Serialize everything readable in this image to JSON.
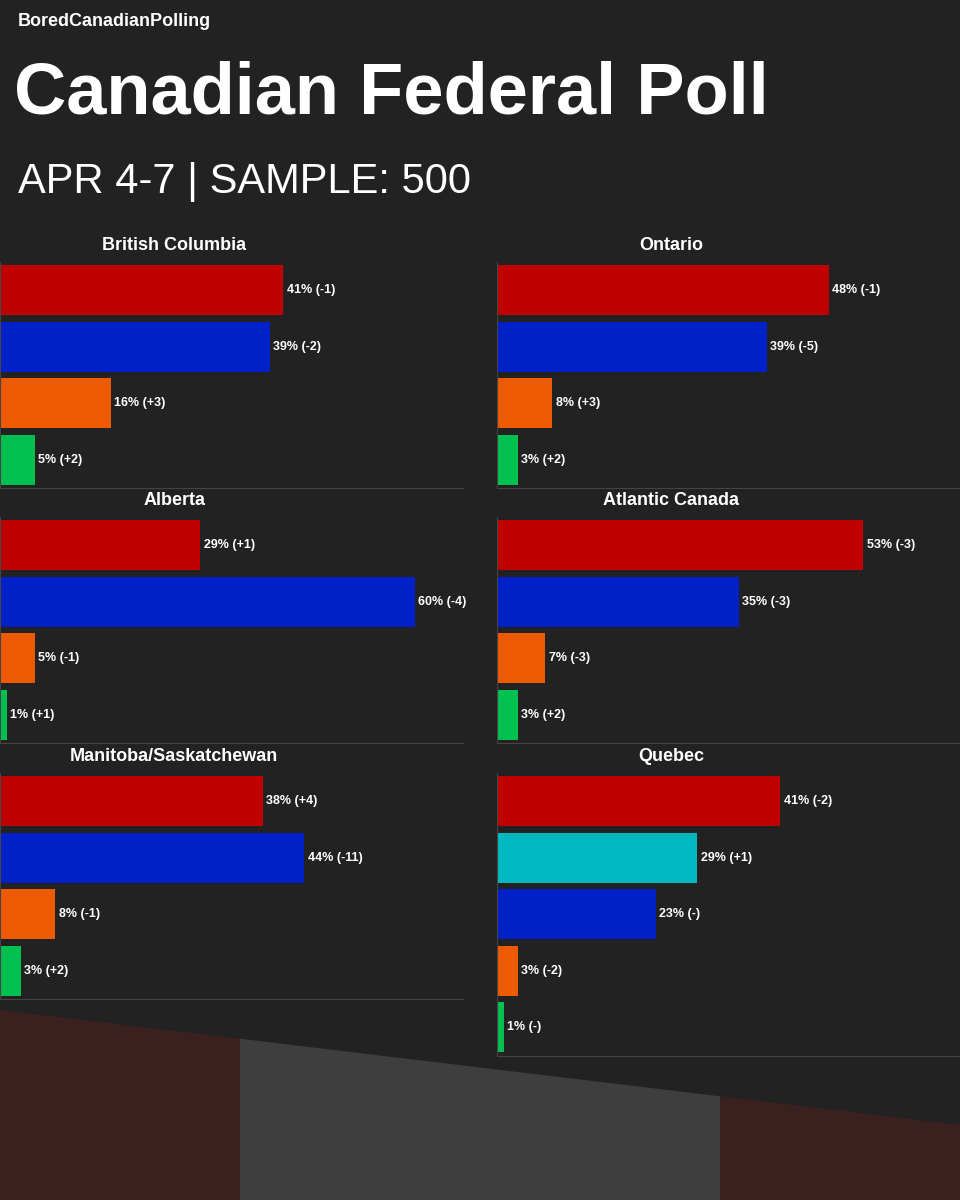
{
  "header": {
    "source": "BoredCanadianPolling",
    "title": "Canadian Federal Poll",
    "subtitle": "APR 4-7 | SAMPLE: 500"
  },
  "chart_data": [
    {
      "type": "bar",
      "orientation": "horizontal",
      "title": "British Columbia",
      "categories": [
        null,
        null,
        null,
        null
      ],
      "values": [
        41,
        39,
        16,
        5
      ],
      "value_labels": [
        "41% (-1)",
        "39% (-2)",
        "16% (+3)",
        "5% (+2)"
      ],
      "colors": [
        "#c00000",
        "#0020c8",
        "#ee5a00",
        "#00c050"
      ],
      "xlim": [
        0,
        67
      ],
      "xticks": [],
      "data_labels": true,
      "tick_labels": false
    },
    {
      "type": "bar",
      "orientation": "horizontal",
      "title": "Ontario",
      "categories": [
        null,
        null,
        null,
        null
      ],
      "values": [
        48,
        39,
        8,
        3
      ],
      "value_labels": [
        "48% (-1)",
        "39% (-5)",
        "8% (+3)",
        "3% (+2)"
      ],
      "colors": [
        "#c00000",
        "#0020c8",
        "#ee5a00",
        "#00c050"
      ],
      "xlim": [
        0,
        67
      ],
      "xticks": [],
      "data_labels": true,
      "tick_labels": false
    },
    {
      "type": "bar",
      "orientation": "horizontal",
      "title": "Alberta",
      "categories": [
        null,
        null,
        null,
        null
      ],
      "values": [
        29,
        60,
        5,
        1
      ],
      "value_labels": [
        "29% (+1)",
        "60% (-4)",
        "5% (-1)",
        "1% (+1)"
      ],
      "colors": [
        "#c00000",
        "#0020c8",
        "#ee5a00",
        "#00c050"
      ],
      "xlim": [
        0,
        67
      ],
      "xticks": [],
      "data_labels": true,
      "tick_labels": false
    },
    {
      "type": "bar",
      "orientation": "horizontal",
      "title": "Atlantic Canada",
      "categories": [
        null,
        null,
        null,
        null
      ],
      "values": [
        53,
        35,
        7,
        3
      ],
      "value_labels": [
        "53% (-3)",
        "35% (-3)",
        "7% (-3)",
        "3% (+2)"
      ],
      "colors": [
        "#c00000",
        "#0020c8",
        "#ee5a00",
        "#00c050"
      ],
      "xlim": [
        0,
        67
      ],
      "xticks": [],
      "data_labels": true,
      "tick_labels": false
    },
    {
      "type": "bar",
      "orientation": "horizontal",
      "title": "Manitoba/Saskatchewan",
      "categories": [
        null,
        null,
        null,
        null
      ],
      "values": [
        38,
        44,
        8,
        3
      ],
      "value_labels": [
        "38% (+4)",
        "44% (-11)",
        "8% (-1)",
        "3% (+2)"
      ],
      "colors": [
        "#c00000",
        "#0020c8",
        "#ee5a00",
        "#00c050"
      ],
      "xlim": [
        0,
        67
      ],
      "xticks": [],
      "data_labels": true,
      "tick_labels": false
    },
    {
      "type": "bar",
      "orientation": "horizontal",
      "title": "Quebec",
      "categories": [
        null,
        null,
        null,
        null,
        null
      ],
      "values": [
        41,
        29,
        23,
        3,
        1
      ],
      "value_labels": [
        "41% (-2)",
        "29% (+1)",
        "23% (-)",
        "3% (-2)",
        "1% (-)"
      ],
      "colors": [
        "#c00000",
        "#00b8c0",
        "#0020c8",
        "#ee5a00",
        "#00c050"
      ],
      "xlim": [
        0,
        67
      ],
      "xticks": [],
      "data_labels": true,
      "tick_labels": false
    }
  ]
}
